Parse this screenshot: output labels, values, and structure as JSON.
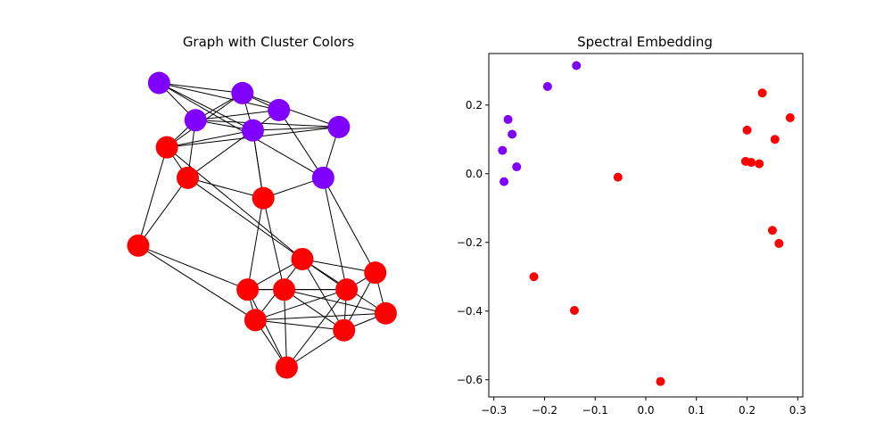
{
  "figure": {
    "left_title": "Graph with Cluster Colors",
    "right_title": "Spectral Embedding"
  },
  "colors": {
    "cluster_purple": "#8000ff",
    "cluster_red": "#ff0000",
    "edge": "#000000",
    "axis": "#000000",
    "background": "#ffffff"
  },
  "chart_data": [
    {
      "type": "network",
      "title": "Graph with Cluster Colors",
      "axes_visible": false,
      "node_labels_visible": false,
      "nodes": [
        {
          "id": 0,
          "cluster": "purple",
          "x": 0.08,
          "y": 0.97
        },
        {
          "id": 1,
          "cluster": "purple",
          "x": 0.4,
          "y": 0.94
        },
        {
          "id": 2,
          "cluster": "purple",
          "x": 0.54,
          "y": 0.89
        },
        {
          "id": 3,
          "cluster": "purple",
          "x": 0.22,
          "y": 0.86
        },
        {
          "id": 4,
          "cluster": "purple",
          "x": 0.44,
          "y": 0.83
        },
        {
          "id": 5,
          "cluster": "purple",
          "x": 0.77,
          "y": 0.84
        },
        {
          "id": 6,
          "cluster": "purple",
          "x": 0.71,
          "y": 0.69
        },
        {
          "id": 7,
          "cluster": "red",
          "x": 0.11,
          "y": 0.78
        },
        {
          "id": 8,
          "cluster": "red",
          "x": 0.19,
          "y": 0.69
        },
        {
          "id": 9,
          "cluster": "red",
          "x": 0.48,
          "y": 0.63
        },
        {
          "id": 10,
          "cluster": "red",
          "x": 0.0,
          "y": 0.49
        },
        {
          "id": 11,
          "cluster": "red",
          "x": 0.63,
          "y": 0.45
        },
        {
          "id": 12,
          "cluster": "red",
          "x": 0.91,
          "y": 0.41
        },
        {
          "id": 13,
          "cluster": "red",
          "x": 0.42,
          "y": 0.36
        },
        {
          "id": 14,
          "cluster": "red",
          "x": 0.56,
          "y": 0.36
        },
        {
          "id": 15,
          "cluster": "red",
          "x": 0.8,
          "y": 0.36
        },
        {
          "id": 16,
          "cluster": "red",
          "x": 0.95,
          "y": 0.29
        },
        {
          "id": 17,
          "cluster": "red",
          "x": 0.45,
          "y": 0.27
        },
        {
          "id": 18,
          "cluster": "red",
          "x": 0.79,
          "y": 0.24
        },
        {
          "id": 19,
          "cluster": "red",
          "x": 0.57,
          "y": 0.13
        }
      ],
      "edges": [
        [
          0,
          1
        ],
        [
          0,
          2
        ],
        [
          0,
          3
        ],
        [
          0,
          4
        ],
        [
          0,
          6
        ],
        [
          1,
          2
        ],
        [
          1,
          3
        ],
        [
          1,
          4
        ],
        [
          1,
          5
        ],
        [
          2,
          3
        ],
        [
          2,
          4
        ],
        [
          2,
          6
        ],
        [
          3,
          4
        ],
        [
          3,
          5
        ],
        [
          3,
          7
        ],
        [
          3,
          8
        ],
        [
          4,
          5
        ],
        [
          4,
          9
        ],
        [
          4,
          8
        ],
        [
          5,
          6
        ],
        [
          1,
          7
        ],
        [
          7,
          8
        ],
        [
          7,
          4
        ],
        [
          7,
          5
        ],
        [
          7,
          11
        ],
        [
          8,
          9
        ],
        [
          8,
          10
        ],
        [
          7,
          10
        ],
        [
          9,
          4
        ],
        [
          9,
          6
        ],
        [
          9,
          13
        ],
        [
          9,
          14
        ],
        [
          10,
          13
        ],
        [
          10,
          17
        ],
        [
          11,
          12
        ],
        [
          11,
          13
        ],
        [
          11,
          15
        ],
        [
          11,
          16
        ],
        [
          11,
          17
        ],
        [
          11,
          18
        ],
        [
          6,
          12
        ],
        [
          6,
          15
        ],
        [
          12,
          15
        ],
        [
          12,
          16
        ],
        [
          12,
          18
        ],
        [
          13,
          14
        ],
        [
          13,
          15
        ],
        [
          13,
          17
        ],
        [
          13,
          19
        ],
        [
          14,
          15
        ],
        [
          14,
          16
        ],
        [
          14,
          18
        ],
        [
          15,
          17
        ],
        [
          15,
          18
        ],
        [
          15,
          19
        ],
        [
          16,
          17
        ],
        [
          16,
          18
        ],
        [
          17,
          18
        ],
        [
          17,
          19
        ],
        [
          18,
          19
        ],
        [
          14,
          19
        ],
        [
          8,
          11
        ]
      ]
    },
    {
      "type": "scatter",
      "title": "Spectral Embedding",
      "xlabel": "",
      "ylabel": "",
      "xlim": [
        -0.31,
        0.31
      ],
      "ylim": [
        -0.65,
        0.35
      ],
      "xticks": [
        -0.3,
        -0.2,
        -0.1,
        0.0,
        0.1,
        0.2,
        0.3
      ],
      "xtick_labels": [
        "−0.3",
        "−0.2",
        "−0.1",
        "0.0",
        "0.1",
        "0.2",
        "0.3"
      ],
      "yticks": [
        0.2,
        0.0,
        -0.2,
        -0.4,
        -0.6
      ],
      "ytick_labels": [
        "0.2",
        "0.0",
        "−0.2",
        "−0.4",
        "−0.6"
      ],
      "grid": false,
      "legend": "none",
      "series": [
        {
          "color": "purple",
          "points": [
            [
              -0.137,
              0.315
            ],
            [
              -0.194,
              0.254
            ],
            [
              -0.272,
              0.158
            ],
            [
              -0.264,
              0.115
            ],
            [
              -0.283,
              0.068
            ],
            [
              -0.255,
              0.02
            ],
            [
              -0.28,
              -0.023
            ]
          ]
        },
        {
          "color": "red",
          "points": [
            [
              0.23,
              0.235
            ],
            [
              0.285,
              0.163
            ],
            [
              0.2,
              0.127
            ],
            [
              0.255,
              0.1
            ],
            [
              0.197,
              0.036
            ],
            [
              0.208,
              0.033
            ],
            [
              0.224,
              0.029
            ],
            [
              -0.055,
              -0.01
            ],
            [
              0.25,
              -0.165
            ],
            [
              0.263,
              -0.203
            ],
            [
              -0.221,
              -0.3
            ],
            [
              -0.141,
              -0.398
            ],
            [
              0.029,
              -0.605
            ]
          ]
        }
      ]
    }
  ]
}
